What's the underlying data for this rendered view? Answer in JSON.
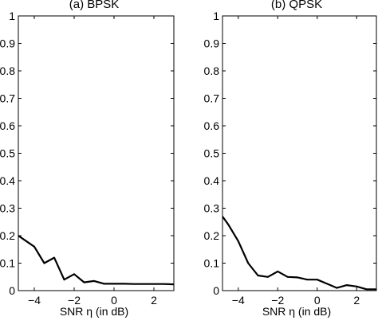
{
  "chart_data": [
    {
      "type": "line",
      "title": "(a) BPSK",
      "xlabel": "SNR   η (in dB)",
      "ylabel": "",
      "xlim": [
        -4.8,
        3
      ],
      "ylim": [
        0,
        1
      ],
      "xticks": [
        -4,
        -2,
        0,
        2
      ],
      "yticks": [
        0,
        0.1,
        0.2,
        0.3,
        0.4,
        0.5,
        0.6,
        0.7,
        0.8,
        0.9,
        1
      ],
      "ytick_labels": [
        "0",
        "0.1",
        "0.2",
        "0.3",
        "0.4",
        "0.5",
        "0.6",
        "0.7",
        "0.8",
        "0.9",
        "1"
      ],
      "xtick_labels": [
        "−4",
        "−2",
        "0",
        "2"
      ],
      "grid": false,
      "series": [
        {
          "x": [
            -4.8,
            -4,
            -3.5,
            -3,
            -2.5,
            -2,
            -1.5,
            -1,
            -0.5,
            0,
            0.5,
            1,
            1.5,
            2,
            2.5,
            3
          ],
          "y": [
            0.2,
            0.16,
            0.1,
            0.12,
            0.04,
            0.06,
            0.03,
            0.035,
            0.025,
            0.025,
            0.025,
            0.024,
            0.024,
            0.024,
            0.024,
            0.023
          ]
        }
      ]
    },
    {
      "type": "line",
      "title": "(b) QPSK",
      "xlabel": "SNR   η (in dB)",
      "ylabel": "",
      "xlim": [
        -4.8,
        3
      ],
      "ylim": [
        0,
        1
      ],
      "xticks": [
        -4,
        -2,
        0,
        2
      ],
      "yticks": [
        0,
        0.1,
        0.2,
        0.3,
        0.4,
        0.5,
        0.6,
        0.7,
        0.8,
        0.9,
        1
      ],
      "ytick_labels": [
        "0",
        "0.1",
        "0.2",
        "0.3",
        "0.4",
        "0.5",
        "0.6",
        "0.7",
        "0.8",
        "0.9",
        "1"
      ],
      "xtick_labels": [
        "−4",
        "−2",
        "0",
        "2"
      ],
      "grid": false,
      "series": [
        {
          "x": [
            -4.8,
            -4.5,
            -4,
            -3.5,
            -3,
            -2.5,
            -2,
            -1.5,
            -1,
            -0.5,
            0,
            0.5,
            1,
            1.5,
            2,
            2.5,
            3
          ],
          "y": [
            0.27,
            0.24,
            0.18,
            0.1,
            0.055,
            0.05,
            0.07,
            0.05,
            0.048,
            0.04,
            0.04,
            0.025,
            0.01,
            0.02,
            0.015,
            0.005,
            0.005
          ]
        }
      ]
    }
  ]
}
